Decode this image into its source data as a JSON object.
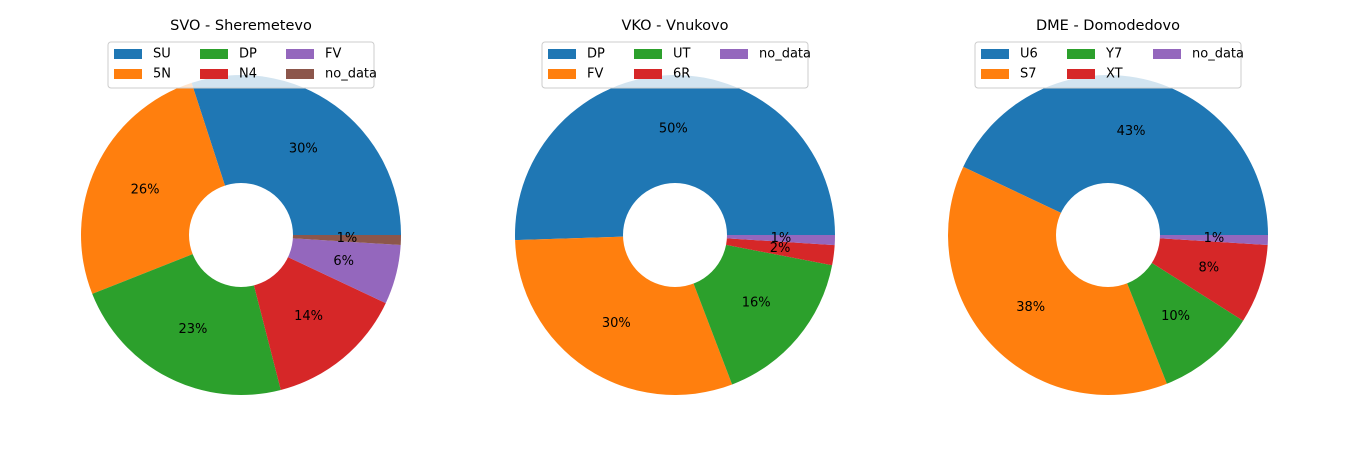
{
  "chart_data": [
    {
      "type": "pie",
      "title": "SVO - Sheremetevo",
      "labels": [
        "SU",
        "5N",
        "DP",
        "N4",
        "FV",
        "no_data"
      ],
      "values": [
        30,
        26,
        23,
        14,
        6,
        1
      ],
      "pct_labels": [
        "30%",
        "26%",
        "23%",
        "14%",
        "6%",
        "1%"
      ],
      "colors": [
        "#1f77b4",
        "#ff7f0e",
        "#2ca02c",
        "#d62728",
        "#9467bd",
        "#8c564b"
      ],
      "donut": true,
      "legend": "top-center"
    },
    {
      "type": "pie",
      "title": "VKO - Vnukovo",
      "labels": [
        "DP",
        "FV",
        "UT",
        "6R",
        "no_data"
      ],
      "values": [
        50,
        30,
        16,
        2,
        1
      ],
      "pct_labels": [
        "50%",
        "30%",
        "16%",
        "2%",
        "1%"
      ],
      "colors": [
        "#1f77b4",
        "#ff7f0e",
        "#2ca02c",
        "#d62728",
        "#9467bd"
      ],
      "donut": true,
      "legend": "top-center"
    },
    {
      "type": "pie",
      "title": "DME - Domodedovo",
      "labels": [
        "U6",
        "S7",
        "Y7",
        "XT",
        "no_data"
      ],
      "values": [
        43,
        38,
        10,
        8,
        1
      ],
      "pct_labels": [
        "43%",
        "38%",
        "10%",
        "8%",
        "1%"
      ],
      "colors": [
        "#1f77b4",
        "#ff7f0e",
        "#2ca02c",
        "#d62728",
        "#9467bd"
      ],
      "donut": true,
      "legend": "top-center"
    }
  ]
}
